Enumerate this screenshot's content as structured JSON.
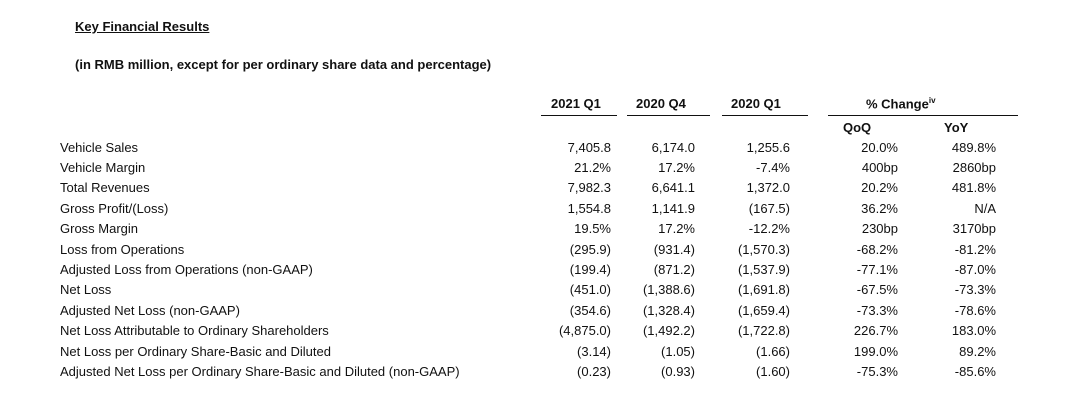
{
  "title": "Key Financial Results",
  "subtitle": "(in RMB million, except for per ordinary share data and percentage)",
  "columns": {
    "q1_2021": "2021 Q1",
    "q4_2020": "2020 Q4",
    "q1_2020": "2020 Q1",
    "pct_change": "% Change",
    "pct_change_note": "iv",
    "qoq": "QoQ",
    "yoy": "YoY"
  },
  "rows": [
    {
      "label": "Vehicle Sales",
      "q1_2021": "7,405.8",
      "q4_2020": "6,174.0",
      "q1_2020": "1,255.6",
      "qoq": "20.0%",
      "yoy": "489.8%"
    },
    {
      "label": "Vehicle Margin",
      "q1_2021": "21.2%",
      "q4_2020": "17.2%",
      "q1_2020": "-7.4%",
      "qoq": "400bp",
      "yoy": "2860bp"
    },
    {
      "label": "Total Revenues",
      "q1_2021": "7,982.3",
      "q4_2020": "6,641.1",
      "q1_2020": "1,372.0",
      "qoq": "20.2%",
      "yoy": "481.8%"
    },
    {
      "label": "Gross Profit/(Loss)",
      "q1_2021": "1,554.8",
      "q4_2020": "1,141.9",
      "q1_2020": "(167.5)",
      "qoq": "36.2%",
      "yoy": "N/A"
    },
    {
      "label": "Gross Margin",
      "q1_2021": "19.5%",
      "q4_2020": "17.2%",
      "q1_2020": "-12.2%",
      "qoq": "230bp",
      "yoy": "3170bp"
    },
    {
      "label": "Loss from Operations",
      "q1_2021": "(295.9)",
      "q4_2020": "(931.4)",
      "q1_2020": "(1,570.3)",
      "qoq": "-68.2%",
      "yoy": "-81.2%"
    },
    {
      "label": "Adjusted Loss from Operations (non-GAAP)",
      "q1_2021": "(199.4)",
      "q4_2020": "(871.2)",
      "q1_2020": "(1,537.9)",
      "qoq": "-77.1%",
      "yoy": "-87.0%"
    },
    {
      "label": "Net Loss",
      "q1_2021": "(451.0)",
      "q4_2020": "(1,388.6)",
      "q1_2020": "(1,691.8)",
      "qoq": "-67.5%",
      "yoy": "-73.3%"
    },
    {
      "label": "Adjusted Net Loss (non-GAAP)",
      "q1_2021": "(354.6)",
      "q4_2020": "(1,328.4)",
      "q1_2020": "(1,659.4)",
      "qoq": "-73.3%",
      "yoy": "-78.6%"
    },
    {
      "label": "Net Loss Attributable to Ordinary Shareholders",
      "q1_2021": "(4,875.0)",
      "q4_2020": "(1,492.2)",
      "q1_2020": "(1,722.8)",
      "qoq": "226.7%",
      "yoy": "183.0%"
    },
    {
      "label": "Net Loss per Ordinary Share-Basic and Diluted",
      "q1_2021": "(3.14)",
      "q4_2020": "(1.05)",
      "q1_2020": "(1.66)",
      "qoq": "199.0%",
      "yoy": "89.2%"
    },
    {
      "label": "Adjusted Net Loss per Ordinary Share-Basic and Diluted (non-GAAP)",
      "q1_2021": "(0.23)",
      "q4_2020": "(0.93)",
      "q1_2020": "(1.60)",
      "qoq": "-75.3%",
      "yoy": "-85.6%"
    }
  ]
}
